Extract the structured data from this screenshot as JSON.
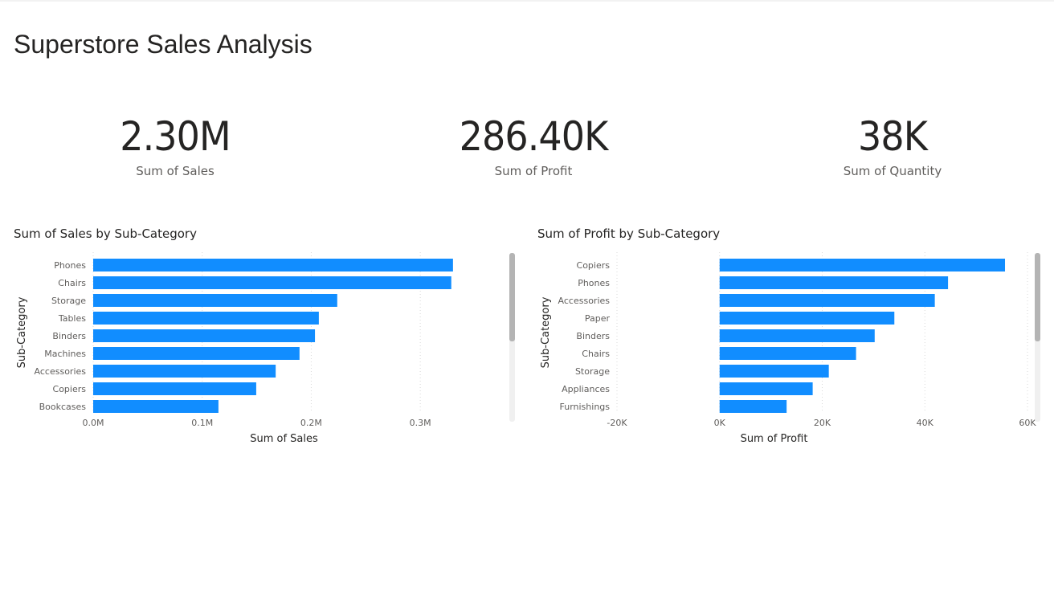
{
  "report": {
    "title": "Superstore Sales Analysis"
  },
  "cards": [
    {
      "value": "2.30M",
      "label": "Sum of Sales"
    },
    {
      "value": "286.40K",
      "label": "Sum of Profit"
    },
    {
      "value": "38K",
      "label": "Sum of Quantity"
    }
  ],
  "colors": {
    "bar": "#118DFF",
    "grid": "#d9d9d9",
    "text": "#252423",
    "subtext": "#605e5c"
  },
  "chart_data": [
    {
      "type": "bar",
      "orientation": "horizontal",
      "title": "Sum of Sales by Sub-Category",
      "xlabel": "Sum of Sales",
      "ylabel": "Sub-Category",
      "categories": [
        "Phones",
        "Chairs",
        "Storage",
        "Tables",
        "Binders",
        "Machines",
        "Accessories",
        "Copiers",
        "Bookcases"
      ],
      "values": [
        330007,
        328449,
        223844,
        206966,
        203413,
        189239,
        167380,
        149528,
        114880
      ],
      "xlim": [
        0,
        350000
      ],
      "xticks": [
        0,
        100000,
        200000,
        300000
      ],
      "xtick_labels": [
        "0.0M",
        "0.1M",
        "0.2M",
        "0.3M"
      ],
      "grid": true,
      "scrollbar": true
    },
    {
      "type": "bar",
      "orientation": "horizontal",
      "title": "Sum of Profit by Sub-Category",
      "xlabel": "Sum of Profit",
      "ylabel": "Sub-Category",
      "categories": [
        "Copiers",
        "Phones",
        "Accessories",
        "Paper",
        "Binders",
        "Chairs",
        "Storage",
        "Appliances",
        "Furnishings"
      ],
      "values": [
        55618,
        44516,
        41937,
        34054,
        30222,
        26590,
        21279,
        18138,
        13059
      ],
      "xlim": [
        -20000,
        60000
      ],
      "xticks": [
        -20000,
        0,
        20000,
        40000,
        60000
      ],
      "xtick_labels": [
        "-20K",
        "0K",
        "20K",
        "40K",
        "60K"
      ],
      "grid": true,
      "scrollbar": true
    }
  ]
}
